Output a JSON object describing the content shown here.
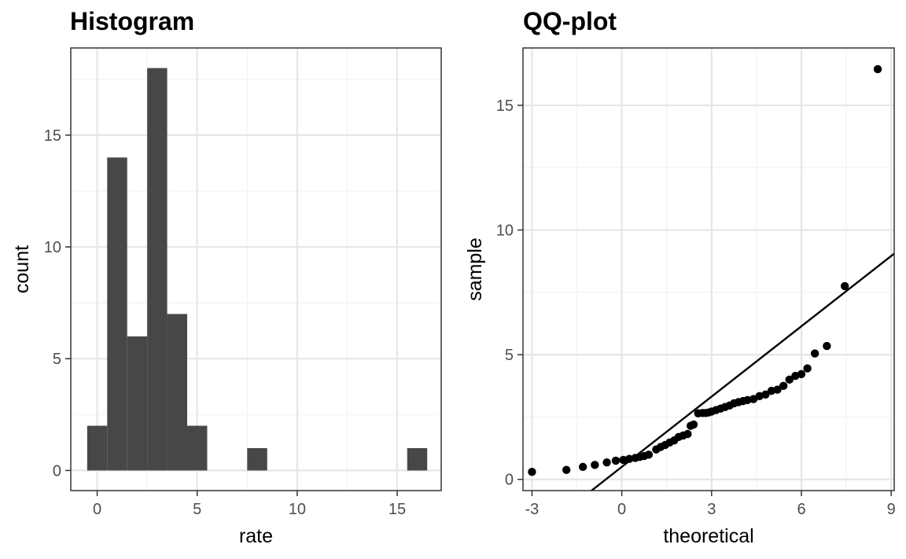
{
  "chart_data": [
    {
      "type": "bar",
      "title": "Histogram",
      "xlabel": "rate",
      "ylabel": "count",
      "xlim": [
        -1.32,
        17.2
      ],
      "ylim": [
        -0.9,
        18.9
      ],
      "xticks": [
        0,
        5,
        10,
        15
      ],
      "yticks": [
        0,
        5,
        10,
        15
      ],
      "grid": true,
      "bar_color": "#474747",
      "bin_width": 1,
      "bins": [
        {
          "x": 0,
          "count": 2
        },
        {
          "x": 1,
          "count": 14
        },
        {
          "x": 2,
          "count": 6
        },
        {
          "x": 3,
          "count": 18
        },
        {
          "x": 4,
          "count": 7
        },
        {
          "x": 5,
          "count": 2
        },
        {
          "x": 6,
          "count": 0
        },
        {
          "x": 7,
          "count": 0
        },
        {
          "x": 8,
          "count": 1
        },
        {
          "x": 9,
          "count": 0
        },
        {
          "x": 10,
          "count": 0
        },
        {
          "x": 11,
          "count": 0
        },
        {
          "x": 12,
          "count": 0
        },
        {
          "x": 13,
          "count": 0
        },
        {
          "x": 14,
          "count": 0
        },
        {
          "x": 15,
          "count": 0
        },
        {
          "x": 16,
          "count": 1
        }
      ]
    },
    {
      "type": "scatter",
      "title": "QQ-plot",
      "xlabel": "theoretical",
      "ylabel": "sample",
      "xlim": [
        -3.3,
        9.1
      ],
      "ylim": [
        -0.45,
        17.3
      ],
      "xticks": [
        -3,
        0,
        3,
        6,
        9
      ],
      "yticks": [
        0,
        5,
        10,
        15
      ],
      "grid": true,
      "point_color": "#000000",
      "reference_line": {
        "intercept": 0.5,
        "slope": 0.94
      },
      "points": [
        [
          -3.0,
          0.3
        ],
        [
          -1.85,
          0.38
        ],
        [
          -1.3,
          0.5
        ],
        [
          -0.9,
          0.58
        ],
        [
          -0.5,
          0.68
        ],
        [
          -0.2,
          0.75
        ],
        [
          0.05,
          0.78
        ],
        [
          0.25,
          0.82
        ],
        [
          0.45,
          0.86
        ],
        [
          0.6,
          0.9
        ],
        [
          0.75,
          0.94
        ],
        [
          0.9,
          0.99
        ],
        [
          1.15,
          1.2
        ],
        [
          1.3,
          1.3
        ],
        [
          1.45,
          1.38
        ],
        [
          1.6,
          1.48
        ],
        [
          1.75,
          1.56
        ],
        [
          1.9,
          1.7
        ],
        [
          2.05,
          1.76
        ],
        [
          2.2,
          1.82
        ],
        [
          2.3,
          2.15
        ],
        [
          2.4,
          2.2
        ],
        [
          2.55,
          2.65
        ],
        [
          2.7,
          2.66
        ],
        [
          2.8,
          2.66
        ],
        [
          2.9,
          2.68
        ],
        [
          3.0,
          2.72
        ],
        [
          3.15,
          2.78
        ],
        [
          3.3,
          2.84
        ],
        [
          3.45,
          2.9
        ],
        [
          3.6,
          2.96
        ],
        [
          3.75,
          3.05
        ],
        [
          3.9,
          3.1
        ],
        [
          4.05,
          3.14
        ],
        [
          4.2,
          3.18
        ],
        [
          4.4,
          3.22
        ],
        [
          4.6,
          3.34
        ],
        [
          4.8,
          3.4
        ],
        [
          5.0,
          3.55
        ],
        [
          5.2,
          3.6
        ],
        [
          5.4,
          3.75
        ],
        [
          5.6,
          4.0
        ],
        [
          5.8,
          4.15
        ],
        [
          6.0,
          4.22
        ],
        [
          6.2,
          4.45
        ],
        [
          6.45,
          5.05
        ],
        [
          6.85,
          5.35
        ],
        [
          7.45,
          7.75
        ],
        [
          8.55,
          16.45
        ]
      ]
    }
  ]
}
